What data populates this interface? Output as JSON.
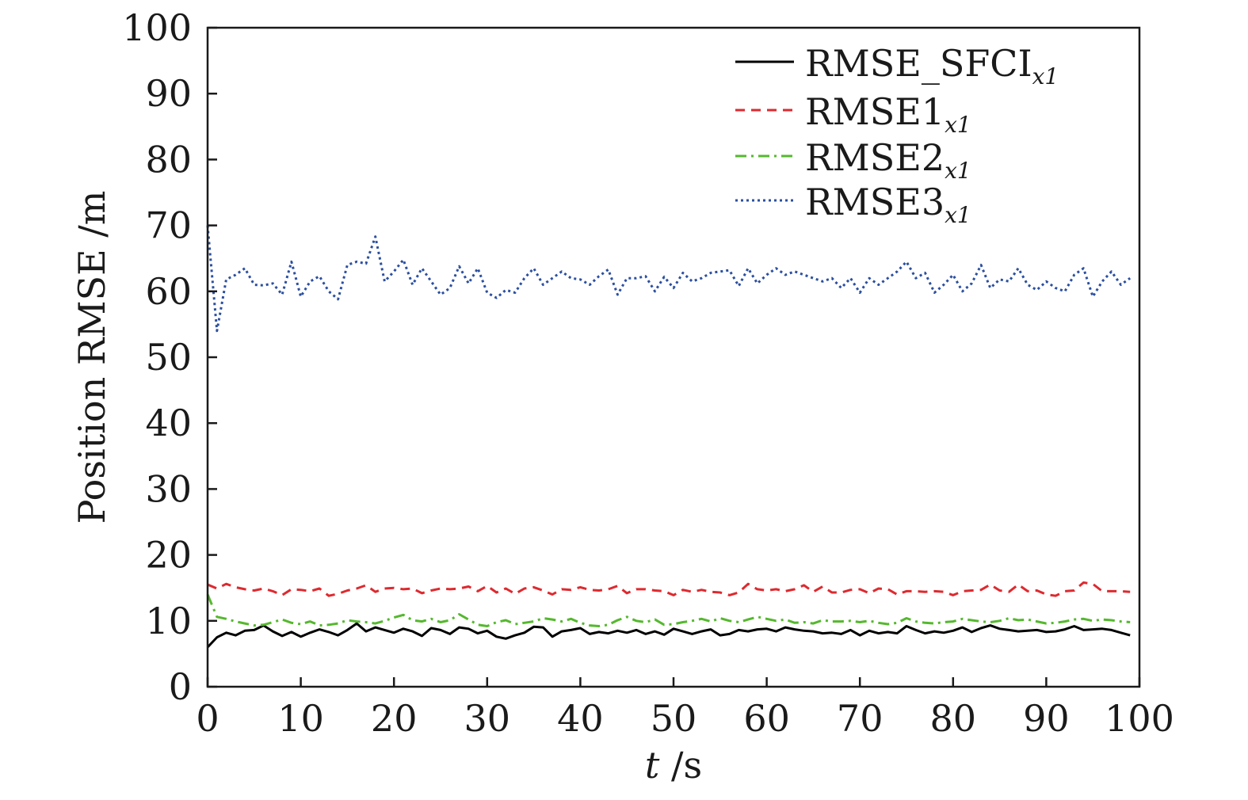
{
  "chart_data": {
    "type": "line",
    "xlabel_var": "t",
    "xlabel_unit": " /s",
    "ylabel": "Position RMSE /m",
    "xlim": [
      0,
      100
    ],
    "ylim": [
      0,
      100
    ],
    "xticks": [
      "0",
      "10",
      "20",
      "30",
      "40",
      "50",
      "60",
      "70",
      "80",
      "90",
      "100"
    ],
    "yticks": [
      "0",
      "10",
      "20",
      "30",
      "40",
      "50",
      "60",
      "70",
      "80",
      "90",
      "100"
    ],
    "grid": false,
    "legend_position": "top-right",
    "x": [
      0,
      1,
      2,
      3,
      4,
      5,
      6,
      7,
      8,
      9,
      10,
      11,
      12,
      13,
      14,
      15,
      16,
      17,
      18,
      19,
      20,
      21,
      22,
      23,
      24,
      25,
      26,
      27,
      28,
      29,
      30,
      31,
      32,
      33,
      34,
      35,
      36,
      37,
      38,
      39,
      40,
      41,
      42,
      43,
      44,
      45,
      46,
      47,
      48,
      49,
      50,
      51,
      52,
      53,
      54,
      55,
      56,
      57,
      58,
      59,
      60,
      61,
      62,
      63,
      64,
      65,
      66,
      67,
      68,
      69,
      70,
      71,
      72,
      73,
      74,
      75,
      76,
      77,
      78,
      79,
      80,
      81,
      82,
      83,
      84,
      85,
      86,
      87,
      88,
      89,
      90,
      91,
      92,
      93,
      94,
      95,
      96,
      97,
      98,
      99
    ],
    "series": [
      {
        "name": "RMSE_SFCI",
        "name_sub": "x1",
        "color": "#000000",
        "dash": "solid",
        "values": [
          6.0,
          7.5,
          8.2,
          7.8,
          8.5,
          8.6,
          9.3,
          8.4,
          7.7,
          8.3,
          7.6,
          8.2,
          8.7,
          8.3,
          7.8,
          8.6,
          9.6,
          8.4,
          9.0,
          8.6,
          8.2,
          8.8,
          8.4,
          7.7,
          8.9,
          8.6,
          8.0,
          9.0,
          8.8,
          8.1,
          8.5,
          7.6,
          7.3,
          7.8,
          8.2,
          9.1,
          9.0,
          7.6,
          8.4,
          8.6,
          8.9,
          8.0,
          8.3,
          8.1,
          8.5,
          8.2,
          8.6,
          8.0,
          8.4,
          7.9,
          8.8,
          8.4,
          8.0,
          8.4,
          8.7,
          7.8,
          8.0,
          8.6,
          8.4,
          8.7,
          8.8,
          8.4,
          9.0,
          8.7,
          8.5,
          8.4,
          8.1,
          8.2,
          8.0,
          8.6,
          7.8,
          8.5,
          8.1,
          8.3,
          8.1,
          9.2,
          8.6,
          8.1,
          8.4,
          8.2,
          8.5,
          9.0,
          8.3,
          8.9,
          9.3,
          8.8,
          8.6,
          8.4,
          8.5,
          8.6,
          8.3,
          8.4,
          8.7,
          9.2,
          8.6,
          8.7,
          8.8,
          8.6,
          8.2,
          7.8
        ]
      },
      {
        "name": "RMSE1",
        "name_sub": "x1",
        "color": "#dd2a2f",
        "dash": "dashed",
        "values": [
          15.5,
          14.9,
          15.6,
          15.1,
          14.8,
          14.6,
          14.9,
          14.5,
          13.9,
          14.8,
          14.7,
          14.5,
          14.9,
          13.8,
          14.1,
          14.6,
          14.9,
          15.4,
          14.4,
          14.9,
          15.0,
          14.8,
          14.9,
          14.2,
          14.6,
          14.9,
          14.8,
          14.9,
          15.2,
          14.5,
          15.3,
          14.3,
          14.9,
          14.1,
          14.9,
          15.1,
          14.6,
          14.0,
          14.8,
          14.7,
          15.1,
          14.7,
          14.6,
          14.8,
          15.3,
          14.2,
          14.8,
          14.8,
          14.6,
          14.5,
          13.9,
          14.7,
          14.4,
          14.7,
          14.4,
          14.3,
          13.9,
          14.3,
          15.6,
          14.8,
          14.6,
          14.8,
          14.5,
          14.8,
          15.4,
          14.4,
          15.2,
          14.3,
          14.3,
          14.7,
          14.8,
          14.2,
          14.9,
          14.8,
          14.0,
          14.5,
          14.5,
          14.4,
          14.5,
          14.4,
          13.9,
          14.5,
          14.6,
          14.7,
          15.5,
          14.6,
          14.4,
          15.5,
          14.5,
          14.6,
          14.0,
          13.8,
          14.5,
          14.6,
          15.8,
          15.6,
          14.5,
          14.5,
          14.5,
          14.4
        ]
      },
      {
        "name": "RMSE2",
        "name_sub": "x1",
        "color": "#55b82e",
        "dash": "dashdot",
        "values": [
          14.0,
          10.6,
          10.3,
          9.9,
          9.6,
          9.3,
          9.4,
          9.8,
          10.2,
          9.7,
          9.5,
          9.9,
          9.3,
          9.4,
          9.6,
          10.1,
          9.9,
          9.8,
          9.6,
          10.0,
          10.5,
          10.9,
          10.1,
          9.9,
          10.3,
          9.8,
          10.1,
          11.0,
          10.2,
          9.4,
          9.2,
          9.8,
          10.1,
          9.5,
          9.7,
          9.9,
          10.4,
          10.2,
          9.9,
          10.3,
          9.7,
          9.3,
          9.2,
          9.4,
          10.1,
          10.6,
          10.0,
          9.8,
          10.2,
          9.4,
          9.5,
          9.8,
          10.0,
          10.3,
          9.9,
          10.4,
          10.0,
          9.8,
          10.2,
          10.6,
          10.3,
          10.0,
          10.2,
          9.7,
          9.8,
          9.6,
          10.1,
          9.9,
          9.9,
          10.0,
          9.8,
          10.0,
          9.7,
          9.5,
          9.7,
          10.4,
          9.9,
          9.7,
          9.6,
          9.8,
          9.9,
          10.3,
          10.1,
          9.9,
          9.8,
          10.0,
          10.4,
          10.1,
          10.2,
          9.9,
          9.6,
          9.7,
          9.9,
          10.2,
          10.3,
          10.0,
          10.2,
          10.1,
          9.9,
          9.8
        ]
      },
      {
        "name": "RMSE3",
        "name_sub": "x1",
        "color": "#2b4fa0",
        "dash": "dotted",
        "values": [
          70.0,
          54.0,
          61.8,
          62.5,
          63.5,
          61.0,
          60.9,
          61.2,
          59.5,
          64.5,
          59.2,
          61.5,
          62.3,
          60.0,
          58.8,
          64.0,
          64.5,
          64.2,
          68.3,
          61.5,
          63.0,
          64.8,
          61.0,
          63.5,
          61.5,
          59.5,
          60.5,
          63.8,
          61.2,
          63.5,
          59.8,
          59.0,
          60.2,
          59.8,
          62.0,
          63.5,
          61.0,
          62.0,
          63.0,
          62.0,
          61.8,
          61.0,
          62.3,
          63.3,
          59.5,
          62.0,
          62.0,
          62.3,
          60.0,
          62.2,
          60.5,
          62.8,
          61.5,
          62.0,
          62.8,
          63.0,
          63.2,
          60.8,
          63.5,
          61.2,
          62.5,
          63.5,
          62.5,
          63.0,
          62.5,
          62.0,
          61.5,
          62.0,
          60.5,
          62.0,
          59.8,
          62.0,
          61.0,
          62.0,
          63.0,
          64.5,
          62.0,
          62.8,
          59.8,
          61.0,
          62.5,
          60.0,
          61.2,
          64.0,
          60.5,
          61.8,
          61.5,
          63.5,
          61.0,
          60.2,
          61.5,
          60.5,
          60.0,
          62.5,
          63.5,
          59.2,
          61.5,
          63.0,
          61.0,
          62.0
        ]
      }
    ]
  }
}
